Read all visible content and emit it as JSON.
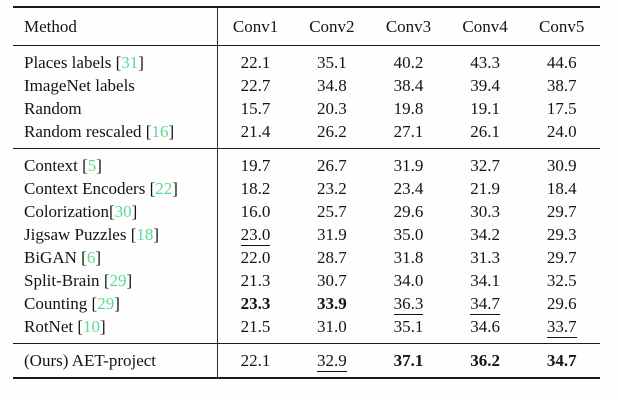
{
  "table": {
    "header": [
      "Method",
      "Conv1",
      "Conv2",
      "Conv3",
      "Conv4",
      "Conv5"
    ],
    "groups": [
      {
        "rows": [
          {
            "method": "Places labels",
            "cite": "31",
            "space": true,
            "values": [
              "22.1",
              "35.1",
              "40.2",
              "43.3",
              "44.6"
            ],
            "styles": [
              "",
              "",
              "",
              "",
              ""
            ]
          },
          {
            "method": "ImageNet labels",
            "cite": null,
            "space": false,
            "values": [
              "22.7",
              "34.8",
              "38.4",
              "39.4",
              "38.7"
            ],
            "styles": [
              "",
              "",
              "",
              "",
              ""
            ]
          },
          {
            "method": "Random",
            "cite": null,
            "space": false,
            "values": [
              "15.7",
              "20.3",
              "19.8",
              "19.1",
              "17.5"
            ],
            "styles": [
              "",
              "",
              "",
              "",
              ""
            ]
          },
          {
            "method": "Random rescaled",
            "cite": "16",
            "space": true,
            "values": [
              "21.4",
              "26.2",
              "27.1",
              "26.1",
              "24.0"
            ],
            "styles": [
              "",
              "",
              "",
              "",
              ""
            ]
          }
        ]
      },
      {
        "rows": [
          {
            "method": "Context",
            "cite": "5",
            "space": true,
            "values": [
              "19.7",
              "26.7",
              "31.9",
              "32.7",
              "30.9"
            ],
            "styles": [
              "",
              "",
              "",
              "",
              ""
            ]
          },
          {
            "method": "Context Encoders",
            "cite": "22",
            "space": true,
            "values": [
              "18.2",
              "23.2",
              "23.4",
              "21.9",
              "18.4"
            ],
            "styles": [
              "",
              "",
              "",
              "",
              ""
            ]
          },
          {
            "method": "Colorization",
            "cite": "30",
            "space": false,
            "values": [
              "16.0",
              "25.7",
              "29.6",
              "30.3",
              "29.7"
            ],
            "styles": [
              "",
              "",
              "",
              "",
              ""
            ]
          },
          {
            "method": "Jigsaw Puzzles",
            "cite": "18",
            "space": true,
            "values": [
              "23.0",
              "31.9",
              "35.0",
              "34.2",
              "29.3"
            ],
            "styles": [
              "u",
              "",
              "",
              "",
              ""
            ]
          },
          {
            "method": "BiGAN",
            "cite": "6",
            "space": true,
            "values": [
              "22.0",
              "28.7",
              "31.8",
              "31.3",
              "29.7"
            ],
            "styles": [
              "",
              "",
              "",
              "",
              ""
            ]
          },
          {
            "method": "Split-Brain",
            "cite": "29",
            "space": true,
            "values": [
              "21.3",
              "30.7",
              "34.0",
              "34.1",
              "32.5"
            ],
            "styles": [
              "",
              "",
              "",
              "",
              ""
            ]
          },
          {
            "method": "Counting",
            "cite": "29",
            "space": true,
            "values": [
              "23.3",
              "33.9",
              "36.3",
              "34.7",
              "29.6"
            ],
            "styles": [
              "b",
              "b",
              "u",
              "u",
              ""
            ]
          },
          {
            "method": "RotNet",
            "cite": "10",
            "space": true,
            "values": [
              "21.5",
              "31.0",
              "35.1",
              "34.6",
              "33.7"
            ],
            "styles": [
              "",
              "",
              "",
              "",
              "u"
            ]
          }
        ]
      },
      {
        "rows": [
          {
            "method": "(Ours) AET-project",
            "cite": null,
            "space": false,
            "values": [
              "22.1",
              "32.9",
              "37.1",
              "36.2",
              "34.7"
            ],
            "styles": [
              "",
              "u",
              "b",
              "b",
              "b"
            ]
          }
        ]
      }
    ]
  },
  "colors": {
    "citation": "#58dc90",
    "text": "#141414",
    "rule": "#1b1b1b"
  }
}
